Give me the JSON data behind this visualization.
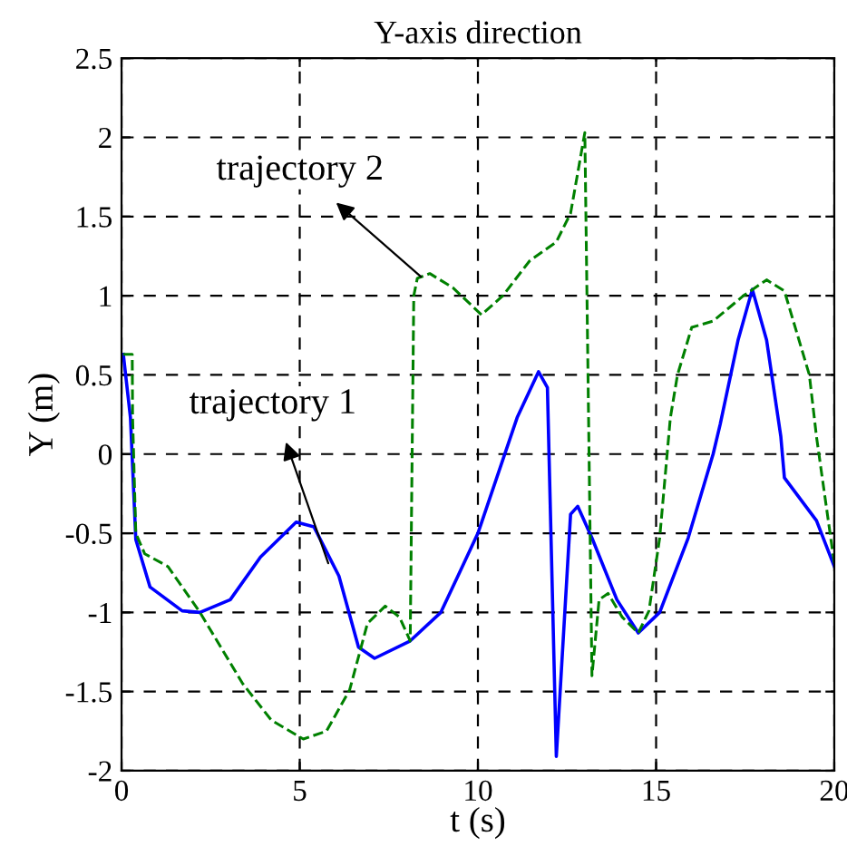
{
  "chart_data": {
    "type": "line",
    "title": "Y-axis direction",
    "xlabel": "t (s)",
    "ylabel": "Y (m)",
    "xlim": [
      0,
      20
    ],
    "ylim": [
      -2,
      2.5
    ],
    "xticks": [
      0,
      5,
      10,
      15,
      20
    ],
    "yticks": [
      -2,
      -1.5,
      -1,
      -0.5,
      0,
      0.5,
      1,
      1.5,
      2,
      2.5
    ],
    "grid": true,
    "series": [
      {
        "color": "#0000ff",
        "line_style": "solid",
        "x": [
          0.05,
          0.25,
          0.4,
          0.8,
          1.7,
          2.2,
          3.05,
          3.9,
          4.9,
          5.4,
          6.1,
          6.65,
          7.1,
          8.1,
          8.96,
          10,
          11.1,
          11.7,
          11.95,
          12.2,
          12.6,
          12.8,
          13.2,
          13.9,
          14.5,
          15.1,
          15.9,
          16.6,
          16.8,
          17.3,
          17.7,
          18.1,
          18.5,
          18.6,
          19.5,
          20
        ],
        "values": [
          0.63,
          0.23,
          -0.54,
          -0.84,
          -0.99,
          -1.0,
          -0.92,
          -0.65,
          -0.43,
          -0.46,
          -0.77,
          -1.22,
          -1.29,
          -1.18,
          -1.0,
          -0.5,
          0.23,
          0.52,
          0.42,
          -1.91,
          -0.38,
          -0.33,
          -0.53,
          -0.92,
          -1.13,
          -1.0,
          -0.53,
          0.0,
          0.19,
          0.72,
          1.04,
          0.72,
          0.11,
          -0.15,
          -0.42,
          -0.71
        ]
      },
      {
        "color": "#008000",
        "line_style": "dashed",
        "x": [
          0.05,
          0.3,
          0.31,
          0.4,
          0.65,
          1.3,
          2.2,
          3.4,
          4.2,
          5.1,
          5.75,
          6.4,
          6.9,
          7.4,
          7.8,
          8.1,
          8.2,
          8.3,
          8.65,
          9.3,
          10.1,
          10.7,
          11.45,
          12.2,
          12.6,
          13.0,
          13.2,
          13.4,
          13.65,
          14.05,
          14.5,
          14.8,
          15.1,
          15.4,
          15.6,
          16.0,
          16.6,
          17.45,
          18.1,
          18.6,
          19.3,
          19.5,
          20
        ],
        "values": [
          0.63,
          0.63,
          0.23,
          -0.5,
          -0.63,
          -0.71,
          -1.0,
          -1.45,
          -1.68,
          -1.8,
          -1.75,
          -1.49,
          -1.07,
          -0.96,
          -1.03,
          -1.18,
          1.0,
          1.11,
          1.14,
          1.05,
          0.88,
          1.0,
          1.22,
          1.34,
          1.52,
          2.03,
          -1.4,
          -0.92,
          -0.88,
          -1.03,
          -1.13,
          -0.99,
          -0.53,
          0.23,
          0.5,
          0.8,
          0.84,
          1.0,
          1.1,
          1.03,
          0.5,
          0.11,
          -0.69
        ]
      }
    ],
    "annotations": [
      {
        "text": "trajectory 1",
        "x": 5.8,
        "y": -0.69
      },
      {
        "text": "trajectory 2",
        "x": 8.4,
        "y": 1.12
      }
    ]
  }
}
